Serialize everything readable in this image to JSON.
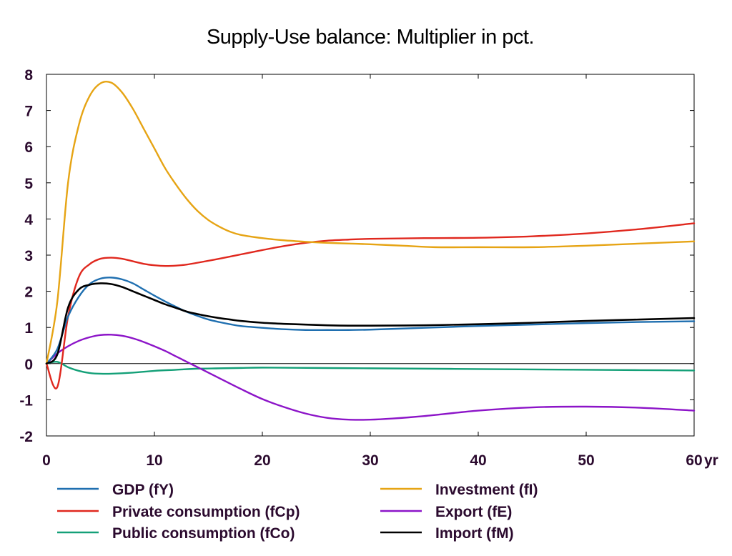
{
  "chart_data": {
    "type": "line",
    "title": "Supply-Use balance: Multiplier in pct.",
    "xlabel": "",
    "ylabel": "",
    "x_unit_label": "yr",
    "xlim": [
      0,
      60
    ],
    "ylim": [
      -2,
      8
    ],
    "x_ticks": [
      "0",
      "10",
      "20",
      "30",
      "40",
      "50",
      "60"
    ],
    "y_ticks": [
      "8",
      "7",
      "6",
      "5",
      "4",
      "3",
      "2",
      "1",
      "0",
      "-1",
      "-2"
    ],
    "grid": false,
    "legend_position": "bottom",
    "series": [
      {
        "name": "GDP (fY)",
        "color": "#1f6fb0",
        "points": [
          [
            0,
            0
          ],
          [
            1,
            0.4
          ],
          [
            2,
            1.3
          ],
          [
            3,
            1.85
          ],
          [
            4,
            2.2
          ],
          [
            5,
            2.35
          ],
          [
            6,
            2.38
          ],
          [
            7,
            2.33
          ],
          [
            8,
            2.22
          ],
          [
            9,
            2.05
          ],
          [
            10,
            1.88
          ],
          [
            11,
            1.72
          ],
          [
            12,
            1.57
          ],
          [
            13,
            1.43
          ],
          [
            14,
            1.32
          ],
          [
            15,
            1.22
          ],
          [
            16,
            1.15
          ],
          [
            17,
            1.09
          ],
          [
            18,
            1.04
          ],
          [
            20,
            0.99
          ],
          [
            22,
            0.95
          ],
          [
            24,
            0.93
          ],
          [
            26,
            0.93
          ],
          [
            28,
            0.93
          ],
          [
            30,
            0.94
          ],
          [
            35,
            0.99
          ],
          [
            40,
            1.04
          ],
          [
            45,
            1.08
          ],
          [
            50,
            1.12
          ],
          [
            55,
            1.15
          ],
          [
            60,
            1.17
          ]
        ]
      },
      {
        "name": "Private consumption (fCp)",
        "color": "#e0281e",
        "points": [
          [
            0,
            0
          ],
          [
            1,
            -0.65
          ],
          [
            2,
            1.3
          ],
          [
            3,
            2.4
          ],
          [
            4,
            2.75
          ],
          [
            5,
            2.9
          ],
          [
            6,
            2.93
          ],
          [
            7,
            2.9
          ],
          [
            8,
            2.83
          ],
          [
            9,
            2.76
          ],
          [
            10,
            2.72
          ],
          [
            11,
            2.7
          ],
          [
            12,
            2.71
          ],
          [
            13,
            2.74
          ],
          [
            14,
            2.79
          ],
          [
            16,
            2.9
          ],
          [
            18,
            3.02
          ],
          [
            20,
            3.14
          ],
          [
            22,
            3.25
          ],
          [
            24,
            3.34
          ],
          [
            26,
            3.4
          ],
          [
            28,
            3.43
          ],
          [
            30,
            3.45
          ],
          [
            35,
            3.47
          ],
          [
            40,
            3.48
          ],
          [
            45,
            3.52
          ],
          [
            50,
            3.6
          ],
          [
            55,
            3.72
          ],
          [
            60,
            3.88
          ]
        ]
      },
      {
        "name": "Public consumption (fCo)",
        "color": "#14a078",
        "points": [
          [
            0,
            0
          ],
          [
            1,
            0.05
          ],
          [
            2,
            -0.1
          ],
          [
            3,
            -0.2
          ],
          [
            4,
            -0.26
          ],
          [
            5,
            -0.28
          ],
          [
            6,
            -0.28
          ],
          [
            8,
            -0.25
          ],
          [
            10,
            -0.2
          ],
          [
            12,
            -0.17
          ],
          [
            14,
            -0.14
          ],
          [
            16,
            -0.13
          ],
          [
            18,
            -0.12
          ],
          [
            20,
            -0.11
          ],
          [
            25,
            -0.12
          ],
          [
            30,
            -0.13
          ],
          [
            35,
            -0.14
          ],
          [
            40,
            -0.15
          ],
          [
            45,
            -0.16
          ],
          [
            50,
            -0.17
          ],
          [
            55,
            -0.18
          ],
          [
            60,
            -0.19
          ]
        ]
      },
      {
        "name": "Investment (fI)",
        "color": "#e6a414",
        "points": [
          [
            0,
            0
          ],
          [
            1,
            1.7
          ],
          [
            2,
            5.0
          ],
          [
            3,
            6.6
          ],
          [
            4,
            7.4
          ],
          [
            5,
            7.75
          ],
          [
            6,
            7.77
          ],
          [
            7,
            7.5
          ],
          [
            8,
            7.05
          ],
          [
            9,
            6.5
          ],
          [
            10,
            5.95
          ],
          [
            11,
            5.4
          ],
          [
            12,
            4.95
          ],
          [
            13,
            4.55
          ],
          [
            14,
            4.22
          ],
          [
            15,
            3.97
          ],
          [
            16,
            3.79
          ],
          [
            17,
            3.65
          ],
          [
            18,
            3.56
          ],
          [
            20,
            3.47
          ],
          [
            22,
            3.41
          ],
          [
            24,
            3.37
          ],
          [
            26,
            3.34
          ],
          [
            28,
            3.32
          ],
          [
            30,
            3.3
          ],
          [
            33,
            3.26
          ],
          [
            36,
            3.22
          ],
          [
            40,
            3.22
          ],
          [
            45,
            3.22
          ],
          [
            50,
            3.26
          ],
          [
            55,
            3.32
          ],
          [
            60,
            3.38
          ]
        ]
      },
      {
        "name": "Export (fE)",
        "color": "#8c14c8",
        "points": [
          [
            0,
            0
          ],
          [
            1,
            0.28
          ],
          [
            2,
            0.48
          ],
          [
            3,
            0.63
          ],
          [
            4,
            0.73
          ],
          [
            5,
            0.79
          ],
          [
            6,
            0.8
          ],
          [
            7,
            0.77
          ],
          [
            8,
            0.7
          ],
          [
            9,
            0.6
          ],
          [
            10,
            0.48
          ],
          [
            11,
            0.35
          ],
          [
            12,
            0.2
          ],
          [
            13,
            0.05
          ],
          [
            14,
            -0.1
          ],
          [
            16,
            -0.4
          ],
          [
            18,
            -0.7
          ],
          [
            20,
            -0.98
          ],
          [
            22,
            -1.2
          ],
          [
            24,
            -1.38
          ],
          [
            26,
            -1.5
          ],
          [
            28,
            -1.55
          ],
          [
            30,
            -1.55
          ],
          [
            32,
            -1.52
          ],
          [
            35,
            -1.45
          ],
          [
            40,
            -1.3
          ],
          [
            45,
            -1.21
          ],
          [
            50,
            -1.19
          ],
          [
            55,
            -1.22
          ],
          [
            60,
            -1.3
          ]
        ]
      },
      {
        "name": "Import (fM)",
        "color": "#000000",
        "points": [
          [
            0,
            0
          ],
          [
            1,
            0.25
          ],
          [
            2,
            1.55
          ],
          [
            3,
            2.05
          ],
          [
            4,
            2.18
          ],
          [
            5,
            2.22
          ],
          [
            6,
            2.2
          ],
          [
            7,
            2.12
          ],
          [
            8,
            2.0
          ],
          [
            9,
            1.88
          ],
          [
            10,
            1.76
          ],
          [
            11,
            1.64
          ],
          [
            12,
            1.54
          ],
          [
            13,
            1.44
          ],
          [
            14,
            1.37
          ],
          [
            15,
            1.31
          ],
          [
            16,
            1.26
          ],
          [
            17,
            1.22
          ],
          [
            18,
            1.18
          ],
          [
            20,
            1.13
          ],
          [
            22,
            1.1
          ],
          [
            24,
            1.08
          ],
          [
            26,
            1.06
          ],
          [
            28,
            1.05
          ],
          [
            30,
            1.05
          ],
          [
            35,
            1.06
          ],
          [
            40,
            1.09
          ],
          [
            45,
            1.13
          ],
          [
            50,
            1.18
          ],
          [
            55,
            1.22
          ],
          [
            60,
            1.26
          ]
        ]
      }
    ]
  }
}
